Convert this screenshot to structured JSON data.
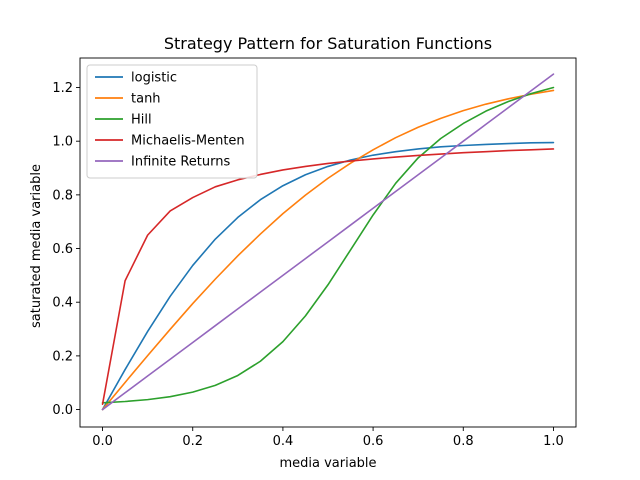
{
  "chart_data": {
    "type": "line",
    "title": "Strategy Pattern for Saturation Functions",
    "xlabel": "media variable",
    "ylabel": "saturated media variable",
    "xlim": [
      -0.05,
      1.05
    ],
    "ylim": [
      -0.065,
      1.31
    ],
    "x_ticks": [
      0.0,
      0.2,
      0.4,
      0.6,
      0.8,
      1.0
    ],
    "x_tick_labels": [
      "0.0",
      "0.2",
      "0.4",
      "0.6",
      "0.8",
      "1.0"
    ],
    "y_ticks": [
      0.0,
      0.2,
      0.4,
      0.6,
      0.8,
      1.0,
      1.2
    ],
    "y_tick_labels": [
      "0.0",
      "0.2",
      "0.4",
      "0.6",
      "0.8",
      "1.0",
      "1.2"
    ],
    "grid": false,
    "legend_position": "top-left",
    "x": [
      0.0,
      0.05,
      0.1,
      0.15,
      0.2,
      0.25,
      0.3,
      0.35,
      0.4,
      0.45,
      0.5,
      0.55,
      0.6,
      0.65,
      0.7,
      0.75,
      0.8,
      0.85,
      0.9,
      0.95,
      1.0
    ],
    "series": [
      {
        "name": "logistic",
        "color": "#1f77b4",
        "values": [
          0.0,
          0.149,
          0.291,
          0.422,
          0.537,
          0.635,
          0.716,
          0.782,
          0.834,
          0.875,
          0.906,
          0.93,
          0.948,
          0.961,
          0.971,
          0.979,
          0.984,
          0.988,
          0.991,
          0.994,
          0.995
        ]
      },
      {
        "name": "tanh",
        "color": "#ff7f0e",
        "values": [
          0.0,
          0.101,
          0.201,
          0.299,
          0.395,
          0.486,
          0.573,
          0.654,
          0.73,
          0.799,
          0.862,
          0.918,
          0.968,
          1.013,
          1.052,
          1.085,
          1.114,
          1.138,
          1.158,
          1.175,
          1.189
        ]
      },
      {
        "name": "Hill",
        "color": "#2ca02c",
        "values": [
          0.025,
          0.03,
          0.037,
          0.048,
          0.065,
          0.09,
          0.127,
          0.18,
          0.253,
          0.349,
          0.465,
          0.595,
          0.725,
          0.843,
          0.938,
          1.01,
          1.066,
          1.112,
          1.148,
          1.177,
          1.2
        ]
      },
      {
        "name": "Michaelis-Menten",
        "color": "#d62728",
        "values": [
          0.02,
          0.48,
          0.65,
          0.74,
          0.79,
          0.83,
          0.856,
          0.876,
          0.893,
          0.906,
          0.917,
          0.926,
          0.934,
          0.941,
          0.947,
          0.952,
          0.957,
          0.961,
          0.965,
          0.968,
          0.971
        ]
      },
      {
        "name": "Infinite Returns",
        "color": "#9467bd",
        "values": [
          0.0,
          0.0625,
          0.125,
          0.1875,
          0.25,
          0.3125,
          0.375,
          0.4375,
          0.5,
          0.5625,
          0.625,
          0.6875,
          0.75,
          0.8125,
          0.875,
          0.9375,
          1.0,
          1.0625,
          1.125,
          1.1875,
          1.25
        ]
      }
    ]
  }
}
